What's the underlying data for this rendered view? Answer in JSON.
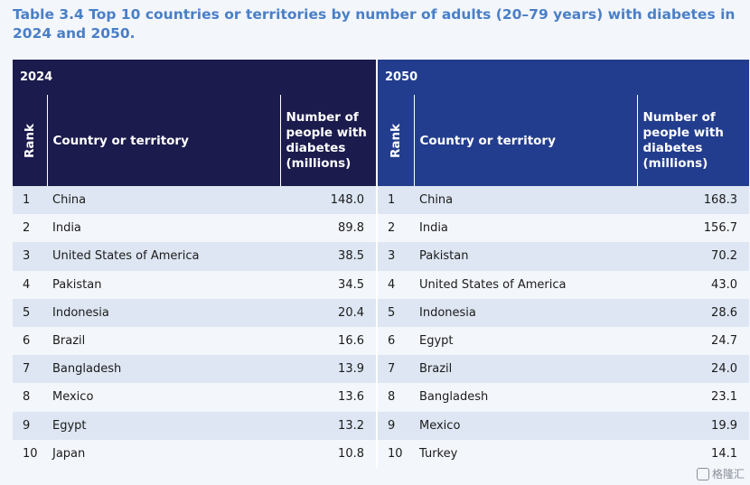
{
  "title": "Table 3.4 Top 10 countries or territories by number of adults (20–79 years) with diabetes in 2024 and 2050.",
  "years": {
    "left": "2024",
    "right": "2050"
  },
  "headers": {
    "rank": "Rank",
    "country": "Country or territory",
    "number": "Number of people with diabetes (millions)"
  },
  "rows": [
    {
      "r1": "1",
      "c1": "China",
      "v1": "148.0",
      "r2": "1",
      "c2": "China",
      "v2": "168.3"
    },
    {
      "r1": "2",
      "c1": "India",
      "v1": "89.8",
      "r2": "2",
      "c2": "India",
      "v2": "156.7"
    },
    {
      "r1": "3",
      "c1": "United States of America",
      "v1": "38.5",
      "r2": "3",
      "c2": "Pakistan",
      "v2": "70.2"
    },
    {
      "r1": "4",
      "c1": "Pakistan",
      "v1": "34.5",
      "r2": "4",
      "c2": "United States of America",
      "v2": "43.0"
    },
    {
      "r1": "5",
      "c1": "Indonesia",
      "v1": "20.4",
      "r2": "5",
      "c2": "Indonesia",
      "v2": "28.6"
    },
    {
      "r1": "6",
      "c1": "Brazil",
      "v1": "16.6",
      "r2": "6",
      "c2": "Egypt",
      "v2": "24.7"
    },
    {
      "r1": "7",
      "c1": "Bangladesh",
      "v1": "13.9",
      "r2": "7",
      "c2": "Brazil",
      "v2": "24.0"
    },
    {
      "r1": "8",
      "c1": "Mexico",
      "v1": "13.6",
      "r2": "8",
      "c2": "Bangladesh",
      "v2": "23.1"
    },
    {
      "r1": "9",
      "c1": "Egypt",
      "v1": "13.2",
      "r2": "9",
      "c2": "Mexico",
      "v2": "19.9"
    },
    {
      "r1": "10",
      "c1": "Japan",
      "v1": "10.8",
      "r2": "10",
      "c2": "Turkey",
      "v2": "14.1"
    }
  ],
  "watermark": "格隆汇"
}
